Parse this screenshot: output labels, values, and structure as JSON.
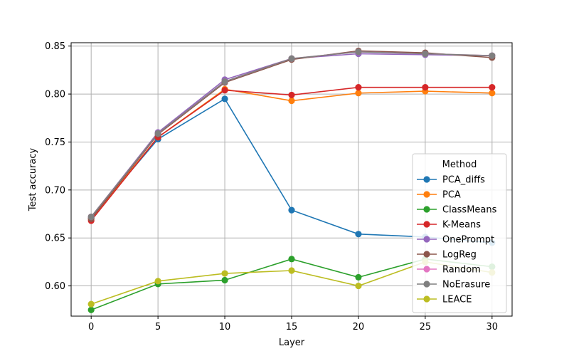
{
  "chart_data": {
    "type": "line",
    "xlabel": "Layer",
    "ylabel": "Test accuracy",
    "x": [
      0,
      5,
      10,
      15,
      20,
      25,
      30
    ],
    "xlim": [
      -1.5,
      31.5
    ],
    "ylim": [
      0.5685,
      0.8535
    ],
    "xticks": [
      0,
      5,
      10,
      15,
      20,
      25,
      30
    ],
    "yticks": [
      0.6,
      0.65,
      0.7,
      0.75,
      0.8,
      0.85
    ],
    "ytick_labels": [
      "0.60",
      "0.65",
      "0.70",
      "0.75",
      "0.80",
      "0.85"
    ],
    "grid": true,
    "legend": {
      "title": "Method",
      "placement": "lower-right"
    },
    "series": [
      {
        "name": "PCA_diffs",
        "color": "#1f77b4",
        "values": [
          0.671,
          0.753,
          0.795,
          0.679,
          0.654,
          0.651,
          0.645
        ]
      },
      {
        "name": "PCA",
        "color": "#ff7f0e",
        "values": [
          0.67,
          0.755,
          0.805,
          0.793,
          0.801,
          0.803,
          0.801
        ]
      },
      {
        "name": "ClassMeans",
        "color": "#2ca02c",
        "values": [
          0.575,
          0.602,
          0.606,
          0.628,
          0.609,
          0.628,
          0.62
        ]
      },
      {
        "name": "K-Means",
        "color": "#d62728",
        "values": [
          0.668,
          0.755,
          0.804,
          0.799,
          0.807,
          0.807,
          0.807
        ]
      },
      {
        "name": "OnePrompt",
        "color": "#9467bd",
        "values": [
          0.672,
          0.76,
          0.815,
          0.837,
          0.842,
          0.841,
          0.84
        ]
      },
      {
        "name": "LogReg",
        "color": "#8c564b",
        "values": [
          0.67,
          0.758,
          0.812,
          0.836,
          0.845,
          0.843,
          0.838
        ]
      },
      {
        "name": "Random",
        "color": "#e377c2",
        "values": [
          0.672,
          0.759,
          0.813,
          0.837,
          0.844,
          0.842,
          0.84
        ]
      },
      {
        "name": "NoErasure",
        "color": "#7f7f7f",
        "values": [
          0.672,
          0.759,
          0.813,
          0.837,
          0.844,
          0.842,
          0.84
        ]
      },
      {
        "name": "LEACE",
        "color": "#bcbd22",
        "values": [
          0.581,
          0.605,
          0.613,
          0.616,
          0.6,
          0.625,
          0.614
        ]
      }
    ]
  }
}
